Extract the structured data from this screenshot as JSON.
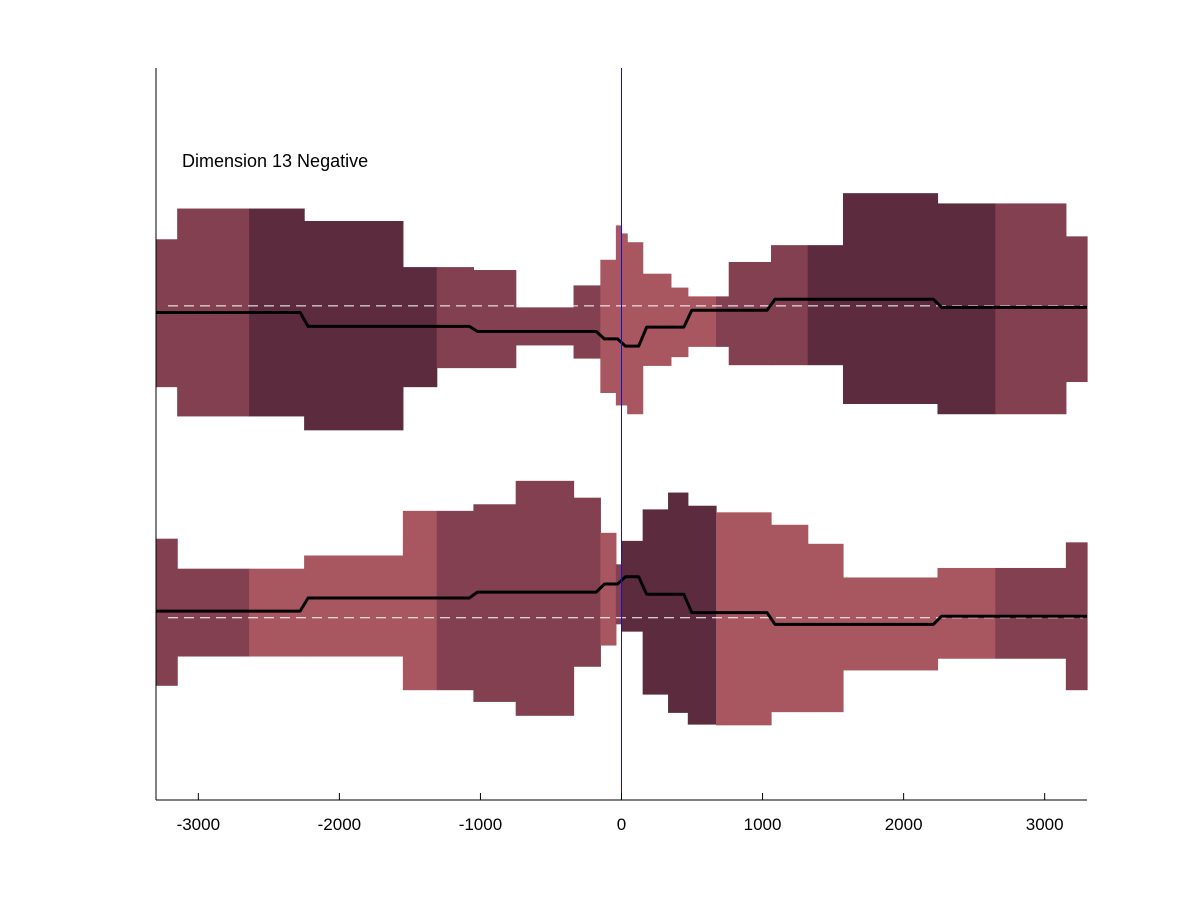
{
  "chart_data": {
    "type": "area",
    "annotation": "Dimension 13 Negative",
    "xlim": [
      -3300,
      3300
    ],
    "ylim": [
      0,
      1
    ],
    "xticks": [
      -3000,
      -2000,
      -1000,
      0,
      1000,
      2000,
      3000
    ],
    "xtick_labels": [
      "-3000",
      "-2000",
      "-1000",
      "0",
      "1000",
      "2000",
      "3000"
    ],
    "grid": false,
    "colors": {
      "light": "#a85660",
      "medium": "#834050",
      "dark": "#5c2b3d",
      "trend_line": "#000000",
      "baseline": "#ffffff",
      "center_line": "#1a10c0",
      "axis": "#000000"
    },
    "center_x": 0,
    "bands": [
      {
        "baseline": 0.675,
        "segments": [
          {
            "x0": -3300,
            "x1": -3150,
            "lo": 0.564,
            "hi": 0.766,
            "shade": "medium"
          },
          {
            "x0": -3150,
            "x1": -2640,
            "lo": 0.524,
            "hi": 0.808,
            "shade": "medium"
          },
          {
            "x0": -2640,
            "x1": -2250,
            "lo": 0.524,
            "hi": 0.808,
            "shade": "dark"
          },
          {
            "x0": -2250,
            "x1": -1550,
            "lo": 0.505,
            "hi": 0.791,
            "shade": "dark"
          },
          {
            "x0": -1550,
            "x1": -1310,
            "lo": 0.564,
            "hi": 0.728,
            "shade": "dark"
          },
          {
            "x0": -1310,
            "x1": -1050,
            "lo": 0.59,
            "hi": 0.728,
            "shade": "medium"
          },
          {
            "x0": -1050,
            "x1": -750,
            "lo": 0.59,
            "hi": 0.724,
            "shade": "medium"
          },
          {
            "x0": -750,
            "x1": -340,
            "lo": 0.621,
            "hi": 0.673,
            "shade": "medium"
          },
          {
            "x0": -340,
            "x1": -150,
            "lo": 0.603,
            "hi": 0.703,
            "shade": "medium"
          },
          {
            "x0": -150,
            "x1": -40,
            "lo": 0.556,
            "hi": 0.738,
            "shade": "light"
          },
          {
            "x0": -40,
            "x1": 0,
            "lo": 0.539,
            "hi": 0.785,
            "shade": "light"
          },
          {
            "x0": 0,
            "x1": 40,
            "lo": 0.539,
            "hi": 0.774,
            "shade": "light"
          },
          {
            "x0": 40,
            "x1": 150,
            "lo": 0.527,
            "hi": 0.762,
            "shade": "light"
          },
          {
            "x0": 150,
            "x1": 350,
            "lo": 0.593,
            "hi": 0.719,
            "shade": "light"
          },
          {
            "x0": 350,
            "x1": 470,
            "lo": 0.605,
            "hi": 0.7,
            "shade": "light"
          },
          {
            "x0": 470,
            "x1": 670,
            "lo": 0.619,
            "hi": 0.688,
            "shade": "light"
          },
          {
            "x0": 670,
            "x1": 760,
            "lo": 0.619,
            "hi": 0.688,
            "shade": "medium"
          },
          {
            "x0": 760,
            "x1": 1060,
            "lo": 0.594,
            "hi": 0.735,
            "shade": "medium"
          },
          {
            "x0": 1060,
            "x1": 1320,
            "lo": 0.594,
            "hi": 0.758,
            "shade": "medium"
          },
          {
            "x0": 1320,
            "x1": 1570,
            "lo": 0.594,
            "hi": 0.758,
            "shade": "dark"
          },
          {
            "x0": 1570,
            "x1": 2240,
            "lo": 0.541,
            "hi": 0.829,
            "shade": "dark"
          },
          {
            "x0": 2240,
            "x1": 2650,
            "lo": 0.527,
            "hi": 0.815,
            "shade": "dark"
          },
          {
            "x0": 2650,
            "x1": 3150,
            "lo": 0.527,
            "hi": 0.815,
            "shade": "medium"
          },
          {
            "x0": 3150,
            "x1": 3300,
            "lo": 0.571,
            "hi": 0.77,
            "shade": "medium"
          }
        ],
        "trend": [
          {
            "x0": -3300,
            "x1": -2250,
            "y": 0.666
          },
          {
            "x0": -2250,
            "x1": -1050,
            "y": 0.647
          },
          {
            "x0": -1050,
            "x1": -150,
            "y": 0.64
          },
          {
            "x0": -150,
            "x1": 0,
            "y": 0.63
          },
          {
            "x0": 0,
            "x1": 150,
            "y": 0.62
          },
          {
            "x0": 150,
            "x1": 470,
            "y": 0.646
          },
          {
            "x0": 470,
            "x1": 1060,
            "y": 0.669
          },
          {
            "x0": 1060,
            "x1": 2240,
            "y": 0.684
          },
          {
            "x0": 2240,
            "x1": 3300,
            "y": 0.673
          }
        ]
      },
      {
        "baseline": 0.249,
        "segments": [
          {
            "x0": -3300,
            "x1": -3150,
            "lo": 0.156,
            "hi": 0.357,
            "shade": "medium"
          },
          {
            "x0": -3150,
            "x1": -2640,
            "lo": 0.196,
            "hi": 0.316,
            "shade": "medium"
          },
          {
            "x0": -2640,
            "x1": -2250,
            "lo": 0.196,
            "hi": 0.316,
            "shade": "light"
          },
          {
            "x0": -2250,
            "x1": -1550,
            "lo": 0.196,
            "hi": 0.334,
            "shade": "light"
          },
          {
            "x0": -1550,
            "x1": -1310,
            "lo": 0.15,
            "hi": 0.395,
            "shade": "light"
          },
          {
            "x0": -1310,
            "x1": -1050,
            "lo": 0.15,
            "hi": 0.395,
            "shade": "medium"
          },
          {
            "x0": -1050,
            "x1": -750,
            "lo": 0.134,
            "hi": 0.404,
            "shade": "medium"
          },
          {
            "x0": -750,
            "x1": -340,
            "lo": 0.115,
            "hi": 0.436,
            "shade": "medium"
          },
          {
            "x0": -340,
            "x1": -150,
            "lo": 0.182,
            "hi": 0.413,
            "shade": "medium"
          },
          {
            "x0": -150,
            "x1": -40,
            "lo": 0.211,
            "hi": 0.365,
            "shade": "light"
          },
          {
            "x0": -40,
            "x1": 0,
            "lo": 0.24,
            "hi": 0.322,
            "shade": "medium"
          },
          {
            "x0": 0,
            "x1": 150,
            "lo": 0.23,
            "hi": 0.354,
            "shade": "dark"
          },
          {
            "x0": 150,
            "x1": 330,
            "lo": 0.144,
            "hi": 0.397,
            "shade": "dark"
          },
          {
            "x0": 330,
            "x1": 470,
            "lo": 0.119,
            "hi": 0.42,
            "shade": "dark"
          },
          {
            "x0": 470,
            "x1": 670,
            "lo": 0.103,
            "hi": 0.402,
            "shade": "dark"
          },
          {
            "x0": 670,
            "x1": 1060,
            "lo": 0.102,
            "hi": 0.393,
            "shade": "light"
          },
          {
            "x0": 1060,
            "x1": 1320,
            "lo": 0.12,
            "hi": 0.376,
            "shade": "light"
          },
          {
            "x0": 1320,
            "x1": 1570,
            "lo": 0.12,
            "hi": 0.35,
            "shade": "light"
          },
          {
            "x0": 1570,
            "x1": 2240,
            "lo": 0.177,
            "hi": 0.304,
            "shade": "light"
          },
          {
            "x0": 2240,
            "x1": 2650,
            "lo": 0.193,
            "hi": 0.317,
            "shade": "light"
          },
          {
            "x0": 2650,
            "x1": 3150,
            "lo": 0.193,
            "hi": 0.317,
            "shade": "medium"
          },
          {
            "x0": 3150,
            "x1": 3300,
            "lo": 0.15,
            "hi": 0.352,
            "shade": "medium"
          }
        ],
        "trend": [
          {
            "x0": -3300,
            "x1": -2250,
            "y": 0.258
          },
          {
            "x0": -2250,
            "x1": -1050,
            "y": 0.276
          },
          {
            "x0": -1050,
            "x1": -150,
            "y": 0.284
          },
          {
            "x0": -150,
            "x1": 0,
            "y": 0.295
          },
          {
            "x0": 0,
            "x1": 150,
            "y": 0.305
          },
          {
            "x0": 150,
            "x1": 470,
            "y": 0.281
          },
          {
            "x0": 470,
            "x1": 1060,
            "y": 0.256
          },
          {
            "x0": 1060,
            "x1": 2240,
            "y": 0.24
          },
          {
            "x0": 2240,
            "x1": 3300,
            "y": 0.251
          }
        ]
      }
    ]
  }
}
